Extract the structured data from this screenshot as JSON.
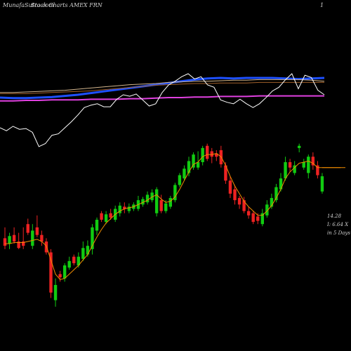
{
  "header": {
    "source": "MunafaSutra.com",
    "title": "Stock Charts AMEX FRN",
    "corner_mark": "1"
  },
  "price_readout": {
    "line1": "14.28",
    "line2": "I: 6.64  X",
    "line3": "in 5 Days"
  },
  "colors": {
    "background": "#000000",
    "up_candle": "#11cc11",
    "down_candle": "#ee2222",
    "price_ma": "#f08c00",
    "ma_fast": "#1e50ff",
    "ma_slow": "#e040e0",
    "ma_brown": "#a0602a",
    "ma_tan": "#d2b48c",
    "indicator": "#ffffff",
    "text": "#d0d0d0"
  },
  "chart_data": {
    "type": "candlestick",
    "title": "Stock Charts AMEX FRN",
    "x_label": "",
    "y_label": "",
    "grid": false,
    "candles": [
      {
        "c": "down",
        "o": 13.95,
        "h": 14.05,
        "l": 13.85,
        "cl": 13.88
      },
      {
        "c": "up",
        "o": 13.9,
        "h": 14.0,
        "l": 13.85,
        "cl": 13.97
      },
      {
        "c": "down",
        "o": 13.98,
        "h": 14.05,
        "l": 13.9,
        "cl": 13.92
      },
      {
        "c": "down",
        "o": 13.92,
        "h": 14.0,
        "l": 13.85,
        "cl": 13.86
      },
      {
        "c": "down",
        "o": 13.92,
        "h": 14.05,
        "l": 13.85,
        "cl": 13.88
      },
      {
        "c": "down",
        "o": 14.08,
        "h": 14.13,
        "l": 13.98,
        "cl": 14.0
      },
      {
        "c": "up",
        "o": 13.88,
        "h": 14.08,
        "l": 13.85,
        "cl": 14.02
      },
      {
        "c": "down",
        "o": 14.05,
        "h": 14.16,
        "l": 13.96,
        "cl": 13.98
      },
      {
        "c": "down",
        "o": 13.98,
        "h": 14.02,
        "l": 13.88,
        "cl": 13.92
      },
      {
        "c": "down",
        "o": 13.92,
        "h": 13.95,
        "l": 13.8,
        "cl": 13.82
      },
      {
        "c": "down",
        "o": 13.82,
        "h": 13.85,
        "l": 13.4,
        "cl": 13.45
      },
      {
        "c": "up",
        "o": 13.38,
        "h": 13.58,
        "l": 13.32,
        "cl": 13.52
      },
      {
        "c": "down",
        "o": 13.62,
        "h": 13.65,
        "l": 13.55,
        "cl": 13.59
      },
      {
        "c": "up",
        "o": 13.58,
        "h": 13.72,
        "l": 13.55,
        "cl": 13.7
      },
      {
        "c": "up",
        "o": 13.68,
        "h": 13.78,
        "l": 13.66,
        "cl": 13.74
      },
      {
        "c": "down",
        "o": 13.78,
        "h": 13.8,
        "l": 13.7,
        "cl": 13.72
      },
      {
        "c": "up",
        "o": 13.7,
        "h": 13.82,
        "l": 13.68,
        "cl": 13.78
      },
      {
        "c": "up",
        "o": 13.76,
        "h": 13.92,
        "l": 13.74,
        "cl": 13.86
      },
      {
        "c": "up",
        "o": 13.8,
        "h": 13.93,
        "l": 13.78,
        "cl": 13.88
      },
      {
        "c": "up",
        "o": 13.85,
        "h": 14.08,
        "l": 13.8,
        "cl": 14.05
      },
      {
        "c": "up",
        "o": 14.02,
        "h": 14.14,
        "l": 13.98,
        "cl": 14.12
      },
      {
        "c": "down",
        "o": 14.18,
        "h": 14.2,
        "l": 14.1,
        "cl": 14.12
      },
      {
        "c": "up",
        "o": 14.1,
        "h": 14.2,
        "l": 14.08,
        "cl": 14.17
      },
      {
        "c": "down",
        "o": 14.18,
        "h": 14.22,
        "l": 14.12,
        "cl": 14.14
      },
      {
        "c": "up",
        "o": 14.12,
        "h": 14.25,
        "l": 14.1,
        "cl": 14.22
      },
      {
        "c": "up",
        "o": 14.18,
        "h": 14.28,
        "l": 14.15,
        "cl": 14.25
      },
      {
        "c": "down",
        "o": 14.24,
        "h": 14.28,
        "l": 14.18,
        "cl": 14.22
      },
      {
        "c": "up",
        "o": 14.2,
        "h": 14.27,
        "l": 14.18,
        "cl": 14.24
      },
      {
        "c": "up",
        "o": 14.22,
        "h": 14.28,
        "l": 14.2,
        "cl": 14.26
      },
      {
        "c": "up",
        "o": 14.22,
        "h": 14.34,
        "l": 14.2,
        "cl": 14.3
      },
      {
        "c": "up",
        "o": 14.26,
        "h": 14.33,
        "l": 14.24,
        "cl": 14.31
      },
      {
        "c": "up",
        "o": 14.28,
        "h": 14.38,
        "l": 14.26,
        "cl": 14.35
      },
      {
        "c": "up",
        "o": 14.3,
        "h": 14.4,
        "l": 14.28,
        "cl": 14.37
      },
      {
        "c": "up",
        "o": 14.18,
        "h": 14.42,
        "l": 14.15,
        "cl": 14.4
      },
      {
        "c": "down",
        "o": 14.3,
        "h": 14.35,
        "l": 14.18,
        "cl": 14.2
      },
      {
        "c": "up",
        "o": 14.2,
        "h": 14.3,
        "l": 14.18,
        "cl": 14.27
      },
      {
        "c": "up",
        "o": 14.24,
        "h": 14.34,
        "l": 14.22,
        "cl": 14.32
      },
      {
        "c": "up",
        "o": 14.3,
        "h": 14.46,
        "l": 14.28,
        "cl": 14.44
      },
      {
        "c": "up",
        "o": 14.44,
        "h": 14.55,
        "l": 14.42,
        "cl": 14.53
      },
      {
        "c": "up",
        "o": 14.5,
        "h": 14.62,
        "l": 14.48,
        "cl": 14.59
      },
      {
        "c": "up",
        "o": 14.55,
        "h": 14.7,
        "l": 14.52,
        "cl": 14.66
      },
      {
        "c": "up",
        "o": 14.6,
        "h": 14.74,
        "l": 14.58,
        "cl": 14.72
      },
      {
        "c": "up",
        "o": 14.6,
        "h": 14.75,
        "l": 14.58,
        "cl": 14.65
      },
      {
        "c": "up",
        "o": 14.65,
        "h": 14.8,
        "l": 14.62,
        "cl": 14.78
      },
      {
        "c": "down",
        "o": 14.8,
        "h": 14.82,
        "l": 14.66,
        "cl": 14.68
      },
      {
        "c": "down",
        "o": 14.75,
        "h": 14.78,
        "l": 14.64,
        "cl": 14.7
      },
      {
        "c": "down",
        "o": 14.73,
        "h": 14.76,
        "l": 14.66,
        "cl": 14.7
      },
      {
        "c": "down",
        "o": 14.76,
        "h": 14.8,
        "l": 14.6,
        "cl": 14.63
      },
      {
        "c": "down",
        "o": 14.62,
        "h": 14.65,
        "l": 14.45,
        "cl": 14.48
      },
      {
        "c": "down",
        "o": 14.48,
        "h": 14.52,
        "l": 14.32,
        "cl": 14.36
      },
      {
        "c": "down",
        "o": 14.4,
        "h": 14.44,
        "l": 14.26,
        "cl": 14.3
      },
      {
        "c": "down",
        "o": 14.32,
        "h": 14.34,
        "l": 14.22,
        "cl": 14.26
      },
      {
        "c": "down",
        "o": 14.3,
        "h": 14.33,
        "l": 14.18,
        "cl": 14.2
      },
      {
        "c": "down",
        "o": 14.2,
        "h": 14.24,
        "l": 14.13,
        "cl": 14.16
      },
      {
        "c": "down",
        "o": 14.18,
        "h": 14.2,
        "l": 14.08,
        "cl": 14.1
      },
      {
        "c": "down",
        "o": 14.15,
        "h": 14.18,
        "l": 14.08,
        "cl": 14.11
      },
      {
        "c": "up",
        "o": 14.08,
        "h": 14.22,
        "l": 14.06,
        "cl": 14.18
      },
      {
        "c": "up",
        "o": 14.16,
        "h": 14.3,
        "l": 14.14,
        "cl": 14.26
      },
      {
        "c": "up",
        "o": 14.24,
        "h": 14.36,
        "l": 14.22,
        "cl": 14.32
      },
      {
        "c": "up",
        "o": 14.3,
        "h": 14.45,
        "l": 14.28,
        "cl": 14.42
      },
      {
        "c": "up",
        "o": 14.4,
        "h": 14.55,
        "l": 14.38,
        "cl": 14.5
      },
      {
        "c": "up",
        "o": 14.5,
        "h": 14.7,
        "l": 14.48,
        "cl": 14.65
      },
      {
        "c": "down",
        "o": 14.65,
        "h": 14.68,
        "l": 14.56,
        "cl": 14.6
      },
      {
        "c": "up",
        "o": 14.55,
        "h": 14.66,
        "l": 14.53,
        "cl": 14.62
      },
      {
        "c": "up",
        "o": 14.78,
        "h": 14.82,
        "l": 14.74,
        "cl": 14.8
      },
      {
        "c": "up",
        "o": 14.6,
        "h": 14.68,
        "l": 14.58,
        "cl": 14.65
      },
      {
        "c": "up",
        "o": 14.55,
        "h": 14.72,
        "l": 14.5,
        "cl": 14.7
      },
      {
        "c": "down",
        "o": 14.7,
        "h": 14.74,
        "l": 14.58,
        "cl": 14.62
      },
      {
        "c": "down",
        "o": 14.62,
        "h": 14.66,
        "l": 14.5,
        "cl": 14.53
      },
      {
        "c": "up",
        "o": 14.38,
        "h": 14.55,
        "l": 14.36,
        "cl": 14.52
      }
    ],
    "price_ma": [
      13.9,
      13.9,
      13.91,
      13.91,
      13.91,
      13.92,
      13.93,
      13.94,
      13.92,
      13.88,
      13.75,
      13.62,
      13.57,
      13.58,
      13.62,
      13.66,
      13.7,
      13.75,
      13.8,
      13.88,
      13.96,
      14.03,
      14.09,
      14.13,
      14.17,
      14.2,
      14.22,
      14.23,
      14.24,
      14.26,
      14.28,
      14.3,
      14.33,
      14.35,
      14.31,
      14.28,
      14.29,
      14.33,
      14.4,
      14.48,
      14.56,
      14.63,
      14.65,
      14.7,
      14.72,
      14.72,
      14.73,
      14.7,
      14.62,
      14.52,
      14.43,
      14.36,
      14.29,
      14.24,
      14.2,
      14.16,
      14.16,
      14.2,
      14.25,
      14.32,
      14.4,
      14.5,
      14.56,
      14.6,
      14.64,
      14.65,
      14.66,
      14.64,
      14.6,
      14.6,
      14.6,
      14.6,
      14.6,
      14.6
    ],
    "overlay_lines": [
      {
        "name": "",
        "color_key": "ma_fast",
        "values": [
          0.45,
          0.44,
          0.44,
          0.45,
          0.46,
          0.48,
          0.5,
          0.53,
          0.56,
          0.59,
          0.62,
          0.65,
          0.68,
          0.71,
          0.74,
          0.77,
          0.79,
          0.8,
          0.79,
          0.8,
          0.8,
          0.8,
          0.79,
          0.78,
          0.79,
          0.8
        ]
      },
      {
        "name": "",
        "color_key": "ma_slow",
        "values": [
          0.39,
          0.39,
          0.4,
          0.4,
          0.41,
          0.41,
          0.41,
          0.42,
          0.42,
          0.42,
          0.43,
          0.43,
          0.44,
          0.45,
          0.45,
          0.46,
          0.46,
          0.47,
          0.47,
          0.47,
          0.48,
          0.48,
          0.48,
          0.48,
          0.48,
          0.48
        ]
      },
      {
        "name": "",
        "color_key": "ma_brown",
        "values": [
          0.52,
          0.52,
          0.52,
          0.53,
          0.54,
          0.55,
          0.56,
          0.57,
          0.59,
          0.61,
          0.63,
          0.65,
          0.67,
          0.68,
          0.69,
          0.7,
          0.7,
          0.71,
          0.71,
          0.71,
          0.72,
          0.72,
          0.72,
          0.72,
          0.72,
          0.72
        ]
      },
      {
        "name": "",
        "color_key": "ma_tan",
        "values": [
          0.54,
          0.54,
          0.55,
          0.56,
          0.57,
          0.58,
          0.6,
          0.62,
          0.64,
          0.66,
          0.68,
          0.69,
          0.7,
          0.72,
          0.73,
          0.74,
          0.74,
          0.75,
          0.76,
          0.76,
          0.77,
          0.77,
          0.77,
          0.77,
          0.76,
          0.74
        ]
      }
    ],
    "indicator": [
      0.28,
      0.24,
      0.3,
      0.26,
      0.27,
      0.22,
      0.03,
      0.07,
      0.18,
      0.2,
      0.28,
      0.36,
      0.45,
      0.55,
      0.58,
      0.6,
      0.56,
      0.56,
      0.66,
      0.72,
      0.7,
      0.73,
      0.65,
      0.57,
      0.6,
      0.75,
      0.85,
      0.9,
      0.96,
      1.0,
      0.93,
      0.96,
      0.85,
      0.82,
      0.65,
      0.62,
      0.6,
      0.66,
      0.6,
      0.55,
      0.6,
      0.68,
      0.77,
      0.82,
      0.92,
      1.0,
      0.8,
      0.98,
      0.95,
      0.78,
      0.72
    ]
  }
}
